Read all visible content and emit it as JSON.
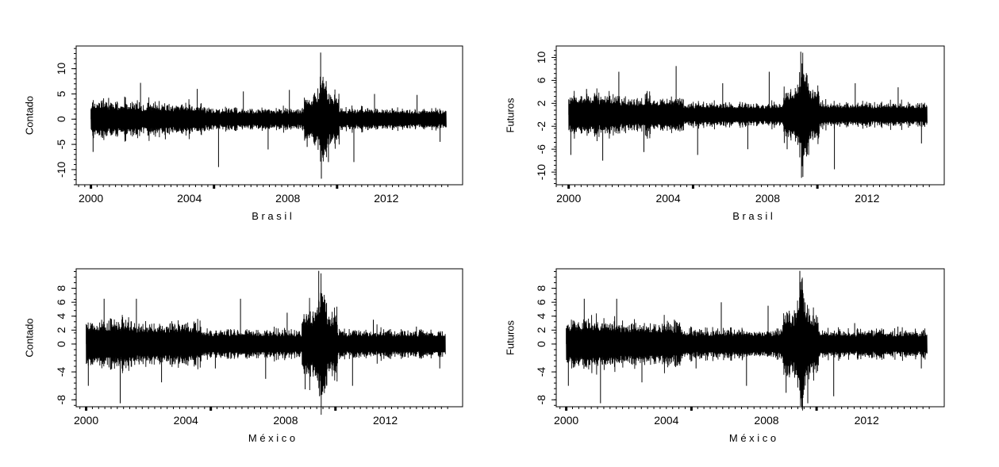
{
  "chart_data": [
    {
      "type": "line",
      "ylabel": "Contado",
      "xlabel": "B r a s i l",
      "x_tick_labels": [
        "2000",
        "2004",
        "2008",
        "2012"
      ],
      "x_ticks": [
        2000,
        2004,
        2008,
        2012
      ],
      "xlim": [
        1999.4,
        2015.1
      ],
      "x_range": [
        2000.0,
        2014.4
      ],
      "y_tick_labels": [
        "-10",
        "-5",
        "0",
        "5",
        "10"
      ],
      "y_ticks": [
        -10,
        -5,
        0,
        5,
        10
      ],
      "ylim": [
        -13.0,
        14.5
      ],
      "series": [
        {
          "values": [
            -6.5,
            4.2,
            -3.0,
            7.2,
            -4.0,
            6.0,
            -9.5,
            5.5,
            -6.0,
            5.8,
            -5.5,
            -11.8,
            13.2,
            -8.5,
            -8.5,
            5.0,
            4.8,
            -4.5
          ]
        }
      ],
      "grid": false
    },
    {
      "type": "line",
      "ylabel": "Futuros",
      "xlabel": "B r a s i l",
      "x_tick_labels": [
        "2000",
        "2004",
        "2008",
        "2012"
      ],
      "x_ticks": [
        2000,
        2004,
        2008,
        2012
      ],
      "xlim": [
        1999.5,
        2015.1
      ],
      "x_range": [
        2000.0,
        2014.4
      ],
      "y_tick_labels": [
        "-10",
        "-6",
        "-2",
        "2",
        "6",
        "10"
      ],
      "y_ticks": [
        -10,
        -6,
        -2,
        2,
        6,
        10
      ],
      "ylim": [
        -12.2,
        12.0
      ],
      "series": [
        {
          "values": [
            -7.0,
            4.5,
            -8.0,
            7.5,
            -6.5,
            8.5,
            -7.0,
            5.5,
            -6.0,
            7.5,
            -6.0,
            -11.0,
            11.0,
            -7.0,
            -9.5,
            5.5,
            4.8,
            -5.0
          ]
        }
      ],
      "grid": false
    },
    {
      "type": "line",
      "ylabel": "Contado",
      "xlabel": "M é x i c o",
      "x_tick_labels": [
        "2000",
        "2004",
        "2008",
        "2012"
      ],
      "x_ticks": [
        2000,
        2004,
        2008,
        2012
      ],
      "xlim": [
        1999.6,
        2015.1
      ],
      "x_range": [
        2000.0,
        2014.4
      ],
      "y_tick_labels": [
        "-8",
        "-4",
        "0",
        "2",
        "4",
        "6",
        "8"
      ],
      "y_ticks": [
        -8,
        -4,
        0,
        2,
        4,
        6,
        8
      ],
      "ylim": [
        -9.0,
        10.8
      ],
      "series": [
        {
          "values": [
            -6.0,
            6.5,
            -8.5,
            6.5,
            -5.5,
            3.0,
            -3.5,
            6.5,
            -5.0,
            4.5,
            -6.5,
            -7.5,
            10.5,
            -6.0,
            -6.0,
            3.5,
            2.5,
            -3.5
          ]
        }
      ],
      "grid": false
    },
    {
      "type": "line",
      "ylabel": "Futuros",
      "xlabel": "M é x i c o",
      "x_tick_labels": [
        "2000",
        "2004",
        "2008",
        "2012"
      ],
      "x_ticks": [
        2000,
        2004,
        2008,
        2012
      ],
      "xlim": [
        1999.6,
        2015.1
      ],
      "x_range": [
        2000.0,
        2014.4
      ],
      "y_tick_labels": [
        "-8",
        "-4",
        "0",
        "2",
        "4",
        "6",
        "8"
      ],
      "y_ticks": [
        -8,
        -4,
        0,
        2,
        4,
        6,
        8
      ],
      "ylim": [
        -9.0,
        10.8
      ],
      "series": [
        {
          "values": [
            -6.0,
            6.5,
            -8.5,
            6.5,
            -5.5,
            3.5,
            -3.5,
            6.0,
            -6.0,
            5.5,
            -7.0,
            -8.0,
            10.5,
            -8.5,
            -7.5,
            3.0,
            2.5,
            -3.5
          ]
        }
      ],
      "grid": false
    }
  ]
}
